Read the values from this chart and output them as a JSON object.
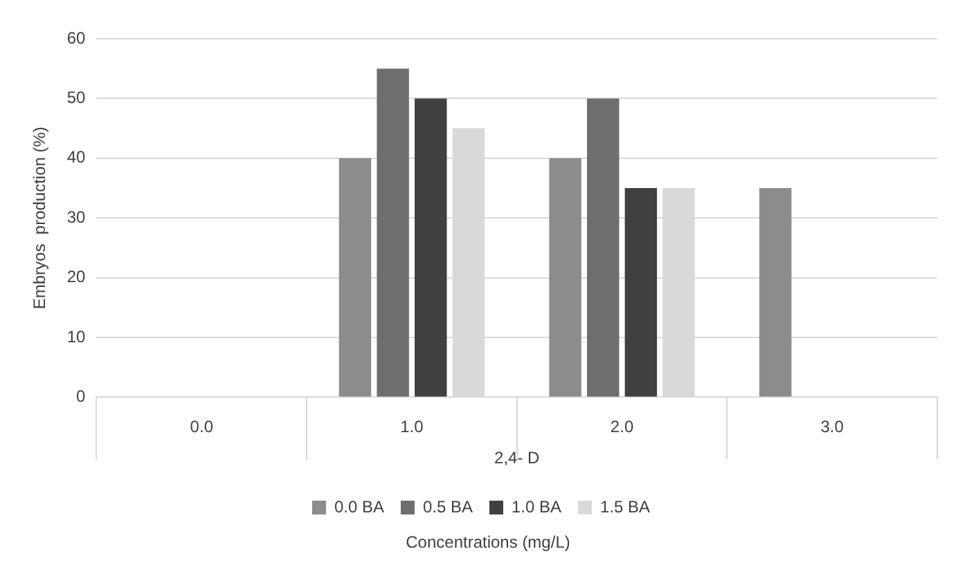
{
  "chart_data": {
    "type": "bar",
    "xlabel": "2,4- D",
    "ylabel": "Embryos  production (%)",
    "categories": [
      "0.0",
      "1.0",
      "2.0",
      "3.0"
    ],
    "series": [
      {
        "name": "0.0 BA",
        "color": "#8c8c8c",
        "values": [
          0,
          40,
          40,
          35
        ]
      },
      {
        "name": "0.5 BA",
        "color": "#6e6e6e",
        "values": [
          0,
          55,
          50,
          0
        ]
      },
      {
        "name": "1.0 BA",
        "color": "#404040",
        "values": [
          0,
          50,
          35,
          0
        ]
      },
      {
        "name": "1.5 BA",
        "color": "#d9d9d9",
        "values": [
          0,
          45,
          35,
          0
        ]
      }
    ],
    "ylim": [
      0,
      60
    ],
    "yticks": [
      0,
      10,
      20,
      30,
      40,
      50,
      60
    ],
    "grid": "y",
    "legend": "bottom",
    "annotations": [
      "Concentrations (mg/L)"
    ]
  }
}
